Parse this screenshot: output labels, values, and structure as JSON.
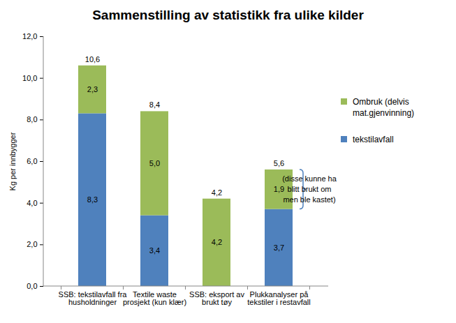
{
  "chart_data": {
    "type": "bar",
    "title": "Sammenstilling av statistikk fra ulike kilder",
    "y_label": "Kg per innbygger",
    "categories": [
      "SSB: tekstilavfall fra\nhusholdninger",
      "Textile waste\nprosjekt (kun klær)",
      "SSB: eksport av\nbrukt tøy",
      "Plukkanalyser på\ntekstiler i restavfall"
    ],
    "series": [
      {
        "name": "tekstilavfall",
        "color": "#4f81bd",
        "values": [
          8.3,
          3.4,
          null,
          3.7
        ],
        "value_labels": [
          "8,3",
          "3,4",
          null,
          "3,7"
        ]
      },
      {
        "name": "Ombruk (delvis\nmat.gjenvinning)",
        "color": "#9bbb59",
        "values": [
          2.3,
          5.0,
          4.2,
          1.9
        ],
        "value_labels": [
          "2,3",
          "5,0",
          "4,2",
          "1,9"
        ]
      }
    ],
    "totals": [
      10.6,
      8.4,
      4.2,
      5.6
    ],
    "total_labels": [
      "10,6",
      "8,4",
      "4,2",
      "5,6"
    ],
    "annotation": "(disse kunne ha\nblitt brukt om\nmen ble kastet)",
    "ylim": [
      0,
      12
    ],
    "yticks": [
      {
        "value": 0,
        "label": "0,0"
      },
      {
        "value": 2,
        "label": "2,0"
      },
      {
        "value": 4,
        "label": "4,0"
      },
      {
        "value": 6,
        "label": "6,0"
      },
      {
        "value": 8,
        "label": "8,0"
      },
      {
        "value": 10,
        "label": "10,0"
      },
      {
        "value": 12,
        "label": "12,0"
      }
    ],
    "stacked": true,
    "data_labels": true,
    "grid": false,
    "legend": "right"
  }
}
